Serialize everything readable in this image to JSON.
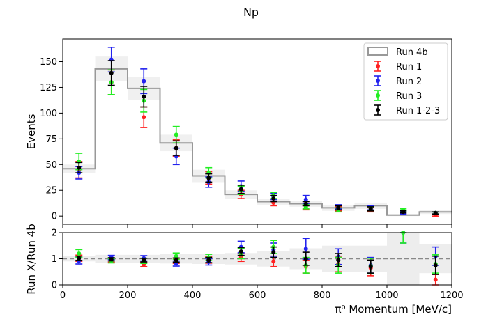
{
  "chart_data": {
    "type": "histogram-with-errorbars",
    "title": "Np",
    "xlabel": "π⁰ Momentum [MeV/c]",
    "xlim": [
      0,
      1200
    ],
    "xticks": [
      "0",
      "200",
      "400",
      "600",
      "800",
      "1000",
      "1200"
    ],
    "top_panel": {
      "ylabel": "Events",
      "ylim": [
        -8,
        172
      ],
      "yticks": [
        "0",
        "25",
        "50",
        "75",
        "100",
        "125",
        "150"
      ],
      "legend_position": "top-right",
      "bins": [
        0,
        100,
        200,
        300,
        400,
        500,
        600,
        700,
        800,
        900,
        1000,
        1100,
        1200
      ],
      "x": [
        50,
        150,
        250,
        350,
        450,
        550,
        650,
        750,
        850,
        950,
        1050,
        1150
      ],
      "reference": {
        "name": "Run 4b",
        "color": "#999999",
        "band_color": "#e6e6e6",
        "values": [
          46,
          143,
          124,
          71,
          39,
          21,
          14,
          12,
          8,
          10,
          1,
          4
        ],
        "band": [
          4,
          12,
          11,
          8,
          6,
          4,
          3,
          3,
          3,
          3,
          1,
          2
        ]
      },
      "series": [
        {
          "name": "Run 1",
          "color": "#ff2222",
          "values": [
            45,
            130,
            96,
            66,
            37,
            21,
            13,
            8,
            7,
            6,
            null,
            1
          ],
          "errors": [
            8,
            12,
            10,
            8,
            6,
            4,
            3,
            2,
            2,
            2,
            null,
            1
          ]
        },
        {
          "name": "Run 2",
          "color": "#2222ee",
          "values": [
            42,
            152,
            131,
            58,
            33,
            29,
            19,
            16,
            9,
            8,
            3,
            3
          ],
          "errors": [
            6,
            12,
            12,
            8,
            5,
            5,
            3,
            4,
            2,
            2,
            1,
            1
          ]
        },
        {
          "name": "Run 3",
          "color": "#22ee22",
          "values": [
            53,
            130,
            112,
            79,
            42,
            25,
            20,
            9,
            6,
            7,
            6,
            3
          ],
          "errors": [
            8,
            12,
            11,
            8,
            5,
            4,
            3,
            2,
            2,
            2,
            1,
            1
          ]
        },
        {
          "name": "Run 1-2-3",
          "color": "#000000",
          "values": [
            47,
            139,
            116,
            66,
            37,
            26,
            17,
            12,
            8,
            7,
            4,
            3
          ],
          "errors": [
            5,
            12,
            10,
            7,
            4,
            4,
            3,
            2,
            2,
            2,
            1,
            1
          ]
        }
      ]
    },
    "ratio_panel": {
      "ylabel": "Run X/Run 4b",
      "ylim": [
        0,
        2
      ],
      "yticks": [
        "0",
        "1",
        "2"
      ],
      "reference_line": 1,
      "band": [
        0.1,
        0.15,
        0.15,
        0.18,
        0.2,
        0.22,
        0.3,
        0.4,
        0.5,
        0.5,
        1.0,
        0.55
      ],
      "series": [
        {
          "name": "Run 1",
          "color": "#ff2222",
          "values": [
            1.02,
            0.95,
            0.78,
            0.92,
            0.95,
            1.05,
            0.9,
            0.7,
            0.8,
            0.65,
            null,
            0.2
          ],
          "errors": [
            0.12,
            0.08,
            0.08,
            0.1,
            0.12,
            0.15,
            0.2,
            0.25,
            0.3,
            0.3,
            null,
            0.2
          ]
        },
        {
          "name": "Run 2",
          "color": "#2222ee",
          "values": [
            0.92,
            1.05,
            1.02,
            0.82,
            0.88,
            1.45,
            1.35,
            1.38,
            1.08,
            0.75,
            2.0,
            1.1
          ],
          "errors": [
            0.12,
            0.08,
            0.1,
            0.1,
            0.12,
            0.22,
            0.25,
            0.4,
            0.3,
            0.3,
            0.4,
            0.35
          ]
        },
        {
          "name": "Run 3",
          "color": "#22ee22",
          "values": [
            1.2,
            0.92,
            0.92,
            1.1,
            1.05,
            1.2,
            1.45,
            0.75,
            0.75,
            0.72,
            2.0,
            0.8
          ],
          "errors": [
            0.15,
            0.08,
            0.1,
            0.12,
            0.12,
            0.2,
            0.25,
            0.3,
            0.3,
            0.3,
            0.4,
            0.35
          ]
        },
        {
          "name": "Run 1-2-3",
          "color": "#000000",
          "values": [
            1.02,
            0.98,
            0.95,
            0.95,
            0.95,
            1.28,
            1.25,
            1.0,
            0.95,
            0.7,
            null,
            0.75
          ],
          "errors": [
            0.08,
            0.06,
            0.07,
            0.08,
            0.1,
            0.15,
            0.2,
            0.25,
            0.25,
            0.25,
            null,
            0.35
          ]
        }
      ]
    }
  }
}
